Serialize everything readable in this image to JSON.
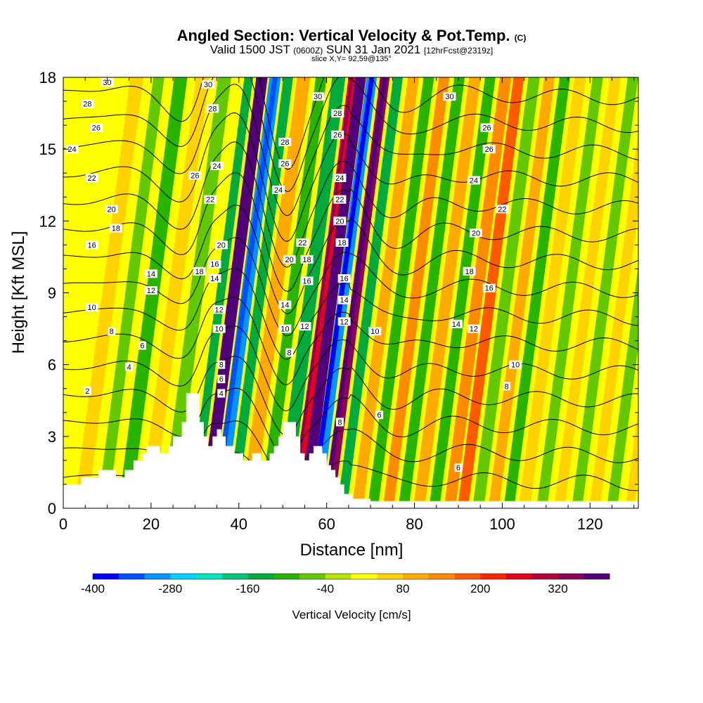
{
  "header": {
    "title": "Angled Section: Vertical Velocity & Pot.Temp.",
    "title_tag": "(C)",
    "valid_prefix": "Valid 1500 JST",
    "valid_utc": "(0600Z)",
    "valid_date": "SUN 31 Jan 2021",
    "forecast": "[12hrFcst@2319z]",
    "slice": "slice X,Y= 92,59@135°"
  },
  "chart_data": {
    "type": "heatmap",
    "xlabel": "Distance [nm]",
    "ylabel": "Height [Kft MSL]",
    "xlim": [
      0,
      131
    ],
    "ylim": [
      0,
      18
    ],
    "xticks": [
      0,
      20,
      40,
      60,
      80,
      100,
      120
    ],
    "yticks": [
      0,
      3,
      6,
      9,
      12,
      15,
      18
    ],
    "colorbar": {
      "label": "Vertical Velocity [cm/s]",
      "min": -400,
      "max": 400,
      "step": 40,
      "tick_values": [
        -400,
        -280,
        -160,
        -40,
        80,
        200,
        320
      ],
      "colors": [
        "#0000ff",
        "#0050ff",
        "#0096ff",
        "#00d2ff",
        "#00e6be",
        "#00c878",
        "#00aa3c",
        "#28b400",
        "#64c800",
        "#b4e600",
        "#ffff00",
        "#ffd200",
        "#ffaa00",
        "#ff8c00",
        "#ff5a00",
        "#ff2800",
        "#e6001e",
        "#b4003c",
        "#8c005a",
        "#500078"
      ]
    },
    "bands": [
      {
        "x": 4,
        "w": 3,
        "value": 60
      },
      {
        "x": 9,
        "w": 2.5,
        "value": -60
      },
      {
        "x": 14,
        "w": 3,
        "value": -90
      },
      {
        "x": 19,
        "w": 3,
        "value": 60
      },
      {
        "x": 24,
        "w": 3,
        "value": -60
      },
      {
        "x": 29.5,
        "w": 2,
        "value": -140
      },
      {
        "x": 32.5,
        "w": 2.6,
        "value": 360
      },
      {
        "x": 35.5,
        "w": 2.6,
        "value": -300
      },
      {
        "x": 38.5,
        "w": 2.2,
        "value": -130
      },
      {
        "x": 42,
        "w": 3,
        "value": 90
      },
      {
        "x": 46,
        "w": 2.5,
        "value": -90
      },
      {
        "x": 50,
        "w": 3,
        "value": -160
      },
      {
        "x": 53,
        "w": 1.6,
        "value": 260
      },
      {
        "x": 55,
        "w": 2.4,
        "value": 380
      },
      {
        "x": 57.5,
        "w": 2.4,
        "value": -320
      },
      {
        "x": 60.5,
        "w": 2.2,
        "value": 320
      },
      {
        "x": 63.5,
        "w": 2.2,
        "value": -140
      },
      {
        "x": 67,
        "w": 2.5,
        "value": 100
      },
      {
        "x": 70.5,
        "w": 2.4,
        "value": -100
      },
      {
        "x": 74,
        "w": 2.4,
        "value": 120
      },
      {
        "x": 77.5,
        "w": 2.4,
        "value": -90
      },
      {
        "x": 81,
        "w": 2.6,
        "value": 110
      },
      {
        "x": 84.5,
        "w": 2.4,
        "value": -90
      },
      {
        "x": 88,
        "w": 2.6,
        "value": 130
      },
      {
        "x": 91,
        "w": 2.4,
        "value": 160
      },
      {
        "x": 94.5,
        "w": 2.6,
        "value": -80
      },
      {
        "x": 98,
        "w": 2.4,
        "value": 90
      },
      {
        "x": 101.5,
        "w": 2.4,
        "value": -100
      },
      {
        "x": 105,
        "w": 2.6,
        "value": 60
      },
      {
        "x": 109,
        "w": 2.4,
        "value": -80
      },
      {
        "x": 113,
        "w": 2.4,
        "value": 50
      },
      {
        "x": 117,
        "w": 2.4,
        "value": -70
      },
      {
        "x": 121,
        "w": 2.4,
        "value": 50
      },
      {
        "x": 125,
        "w": 2.4,
        "value": -60
      },
      {
        "x": 129,
        "w": 2,
        "value": 40
      }
    ],
    "terrain": [
      [
        0,
        1.0
      ],
      [
        4,
        1.0
      ],
      [
        4,
        1.3
      ],
      [
        8,
        1.3
      ],
      [
        8,
        1.6
      ],
      [
        12,
        1.6
      ],
      [
        12,
        1.3
      ],
      [
        14,
        1.3
      ],
      [
        14,
        1.6
      ],
      [
        16,
        1.6
      ],
      [
        16,
        2.0
      ],
      [
        18,
        2.0
      ],
      [
        18,
        2.3
      ],
      [
        19,
        2.3
      ],
      [
        19,
        2.6
      ],
      [
        22,
        2.6
      ],
      [
        22,
        2.3
      ],
      [
        24,
        2.3
      ],
      [
        24,
        2.6
      ],
      [
        25,
        2.6
      ],
      [
        25,
        3.0
      ],
      [
        27,
        3.0
      ],
      [
        27,
        3.6
      ],
      [
        28,
        3.6
      ],
      [
        28,
        4.8
      ],
      [
        31,
        4.8
      ],
      [
        31,
        3.6
      ],
      [
        32,
        3.6
      ],
      [
        32,
        3.0
      ],
      [
        33,
        3.0
      ],
      [
        33,
        2.6
      ],
      [
        34,
        2.6
      ],
      [
        34,
        3.0
      ],
      [
        35,
        3.0
      ],
      [
        35,
        3.3
      ],
      [
        36,
        3.3
      ],
      [
        36,
        3.0
      ],
      [
        37,
        3.0
      ],
      [
        37,
        2.6
      ],
      [
        39,
        2.6
      ],
      [
        39,
        2.3
      ],
      [
        41,
        2.3
      ],
      [
        41,
        2.0
      ],
      [
        43,
        2.0
      ],
      [
        43,
        2.3
      ],
      [
        45,
        2.3
      ],
      [
        45,
        2.0
      ],
      [
        47,
        2.0
      ],
      [
        47,
        2.3
      ],
      [
        48,
        2.3
      ],
      [
        48,
        2.6
      ],
      [
        49,
        2.6
      ],
      [
        49,
        3.0
      ],
      [
        50,
        3.0
      ],
      [
        50,
        3.6
      ],
      [
        53,
        3.6
      ],
      [
        53,
        3.0
      ],
      [
        54,
        3.0
      ],
      [
        54,
        2.3
      ],
      [
        55,
        2.3
      ],
      [
        55,
        2.0
      ],
      [
        56,
        2.0
      ],
      [
        56,
        2.3
      ],
      [
        57,
        2.3
      ],
      [
        57,
        2.6
      ],
      [
        59,
        2.6
      ],
      [
        59,
        2.3
      ],
      [
        60,
        2.3
      ],
      [
        60,
        1.8
      ],
      [
        61,
        1.8
      ],
      [
        61,
        1.6
      ],
      [
        62,
        1.6
      ],
      [
        62,
        1.3
      ],
      [
        63,
        1.3
      ],
      [
        63,
        1.0
      ],
      [
        64,
        1.0
      ],
      [
        64,
        0.6
      ],
      [
        66,
        0.6
      ],
      [
        66,
        0.4
      ],
      [
        70,
        0.4
      ],
      [
        70,
        0.3
      ],
      [
        131,
        0.3
      ]
    ],
    "contours": [
      {
        "level": 2,
        "label": "2"
      },
      {
        "level": 4,
        "label": "4"
      },
      {
        "level": 6,
        "label": "6"
      },
      {
        "level": 8,
        "label": "8"
      },
      {
        "level": 10,
        "label": "10"
      },
      {
        "level": 12,
        "label": "12"
      },
      {
        "level": 14,
        "label": "14"
      },
      {
        "level": 16,
        "label": "16"
      },
      {
        "level": 18,
        "label": "18"
      },
      {
        "level": 20,
        "label": "20"
      },
      {
        "level": 22,
        "label": "22"
      },
      {
        "level": 24,
        "label": "24"
      },
      {
        "level": 26,
        "label": "26"
      },
      {
        "level": 28,
        "label": "28"
      },
      {
        "level": 30,
        "label": "30"
      }
    ],
    "contour_labels": [
      {
        "x": 5.5,
        "y": 4.9,
        "text": "2"
      },
      {
        "x": 15,
        "y": 5.9,
        "text": "4"
      },
      {
        "x": 18,
        "y": 6.8,
        "text": "6"
      },
      {
        "x": 11,
        "y": 7.4,
        "text": "8"
      },
      {
        "x": 6.5,
        "y": 8.4,
        "text": "10"
      },
      {
        "x": 20,
        "y": 9.1,
        "text": "12"
      },
      {
        "x": 20,
        "y": 9.8,
        "text": "14"
      },
      {
        "x": 6.5,
        "y": 11.0,
        "text": "16"
      },
      {
        "x": 12,
        "y": 11.7,
        "text": "18"
      },
      {
        "x": 11,
        "y": 12.5,
        "text": "20"
      },
      {
        "x": 6.5,
        "y": 13.8,
        "text": "22"
      },
      {
        "x": 2,
        "y": 15.0,
        "text": "24"
      },
      {
        "x": 7.5,
        "y": 15.9,
        "text": "26"
      },
      {
        "x": 5.5,
        "y": 16.9,
        "text": "28"
      },
      {
        "x": 10,
        "y": 17.8,
        "text": "30"
      },
      {
        "x": 33,
        "y": 17.7,
        "text": "30"
      },
      {
        "x": 34,
        "y": 16.7,
        "text": "28"
      },
      {
        "x": 30,
        "y": 13.9,
        "text": "26"
      },
      {
        "x": 35,
        "y": 14.3,
        "text": "24"
      },
      {
        "x": 33.5,
        "y": 12.9,
        "text": "22"
      },
      {
        "x": 36,
        "y": 11.0,
        "text": "20"
      },
      {
        "x": 34.5,
        "y": 10.2,
        "text": "16"
      },
      {
        "x": 31,
        "y": 9.9,
        "text": "18"
      },
      {
        "x": 34.5,
        "y": 9.6,
        "text": "14"
      },
      {
        "x": 35.5,
        "y": 8.3,
        "text": "12"
      },
      {
        "x": 35.5,
        "y": 7.5,
        "text": "10"
      },
      {
        "x": 36,
        "y": 6.0,
        "text": "8"
      },
      {
        "x": 36,
        "y": 5.4,
        "text": "6"
      },
      {
        "x": 36,
        "y": 4.8,
        "text": "4"
      },
      {
        "x": 50.5,
        "y": 15.3,
        "text": "28"
      },
      {
        "x": 50.5,
        "y": 14.4,
        "text": "26"
      },
      {
        "x": 49,
        "y": 13.3,
        "text": "24"
      },
      {
        "x": 54.5,
        "y": 11.1,
        "text": "22"
      },
      {
        "x": 51.5,
        "y": 10.4,
        "text": "20"
      },
      {
        "x": 55.5,
        "y": 10.4,
        "text": "18"
      },
      {
        "x": 55.5,
        "y": 9.5,
        "text": "16"
      },
      {
        "x": 50.5,
        "y": 8.5,
        "text": "14"
      },
      {
        "x": 55,
        "y": 7.6,
        "text": "12"
      },
      {
        "x": 50.5,
        "y": 7.5,
        "text": "10"
      },
      {
        "x": 51.5,
        "y": 6.5,
        "text": "8"
      },
      {
        "x": 58,
        "y": 17.2,
        "text": "30"
      },
      {
        "x": 62.5,
        "y": 16.5,
        "text": "28"
      },
      {
        "x": 62.5,
        "y": 15.6,
        "text": "26"
      },
      {
        "x": 63,
        "y": 13.8,
        "text": "24"
      },
      {
        "x": 63,
        "y": 12.9,
        "text": "22"
      },
      {
        "x": 63,
        "y": 12.0,
        "text": "20"
      },
      {
        "x": 63.5,
        "y": 11.1,
        "text": "18"
      },
      {
        "x": 64,
        "y": 9.6,
        "text": "16"
      },
      {
        "x": 64,
        "y": 8.7,
        "text": "14"
      },
      {
        "x": 64,
        "y": 7.8,
        "text": "12"
      },
      {
        "x": 71,
        "y": 7.4,
        "text": "10"
      },
      {
        "x": 63,
        "y": 3.6,
        "text": "8"
      },
      {
        "x": 72,
        "y": 3.9,
        "text": "6"
      },
      {
        "x": 88,
        "y": 17.2,
        "text": "30"
      },
      {
        "x": 96.5,
        "y": 15.9,
        "text": "26"
      },
      {
        "x": 97,
        "y": 15.0,
        "text": "26"
      },
      {
        "x": 93.5,
        "y": 13.7,
        "text": "24"
      },
      {
        "x": 100,
        "y": 12.5,
        "text": "22"
      },
      {
        "x": 94,
        "y": 11.5,
        "text": "20"
      },
      {
        "x": 92.5,
        "y": 9.9,
        "text": "18"
      },
      {
        "x": 97,
        "y": 9.2,
        "text": "16"
      },
      {
        "x": 89.5,
        "y": 7.7,
        "text": "14"
      },
      {
        "x": 93.5,
        "y": 7.5,
        "text": "12"
      },
      {
        "x": 103,
        "y": 6.0,
        "text": "10"
      },
      {
        "x": 101,
        "y": 5.1,
        "text": "8"
      },
      {
        "x": 90,
        "y": 1.7,
        "text": "6"
      }
    ]
  }
}
